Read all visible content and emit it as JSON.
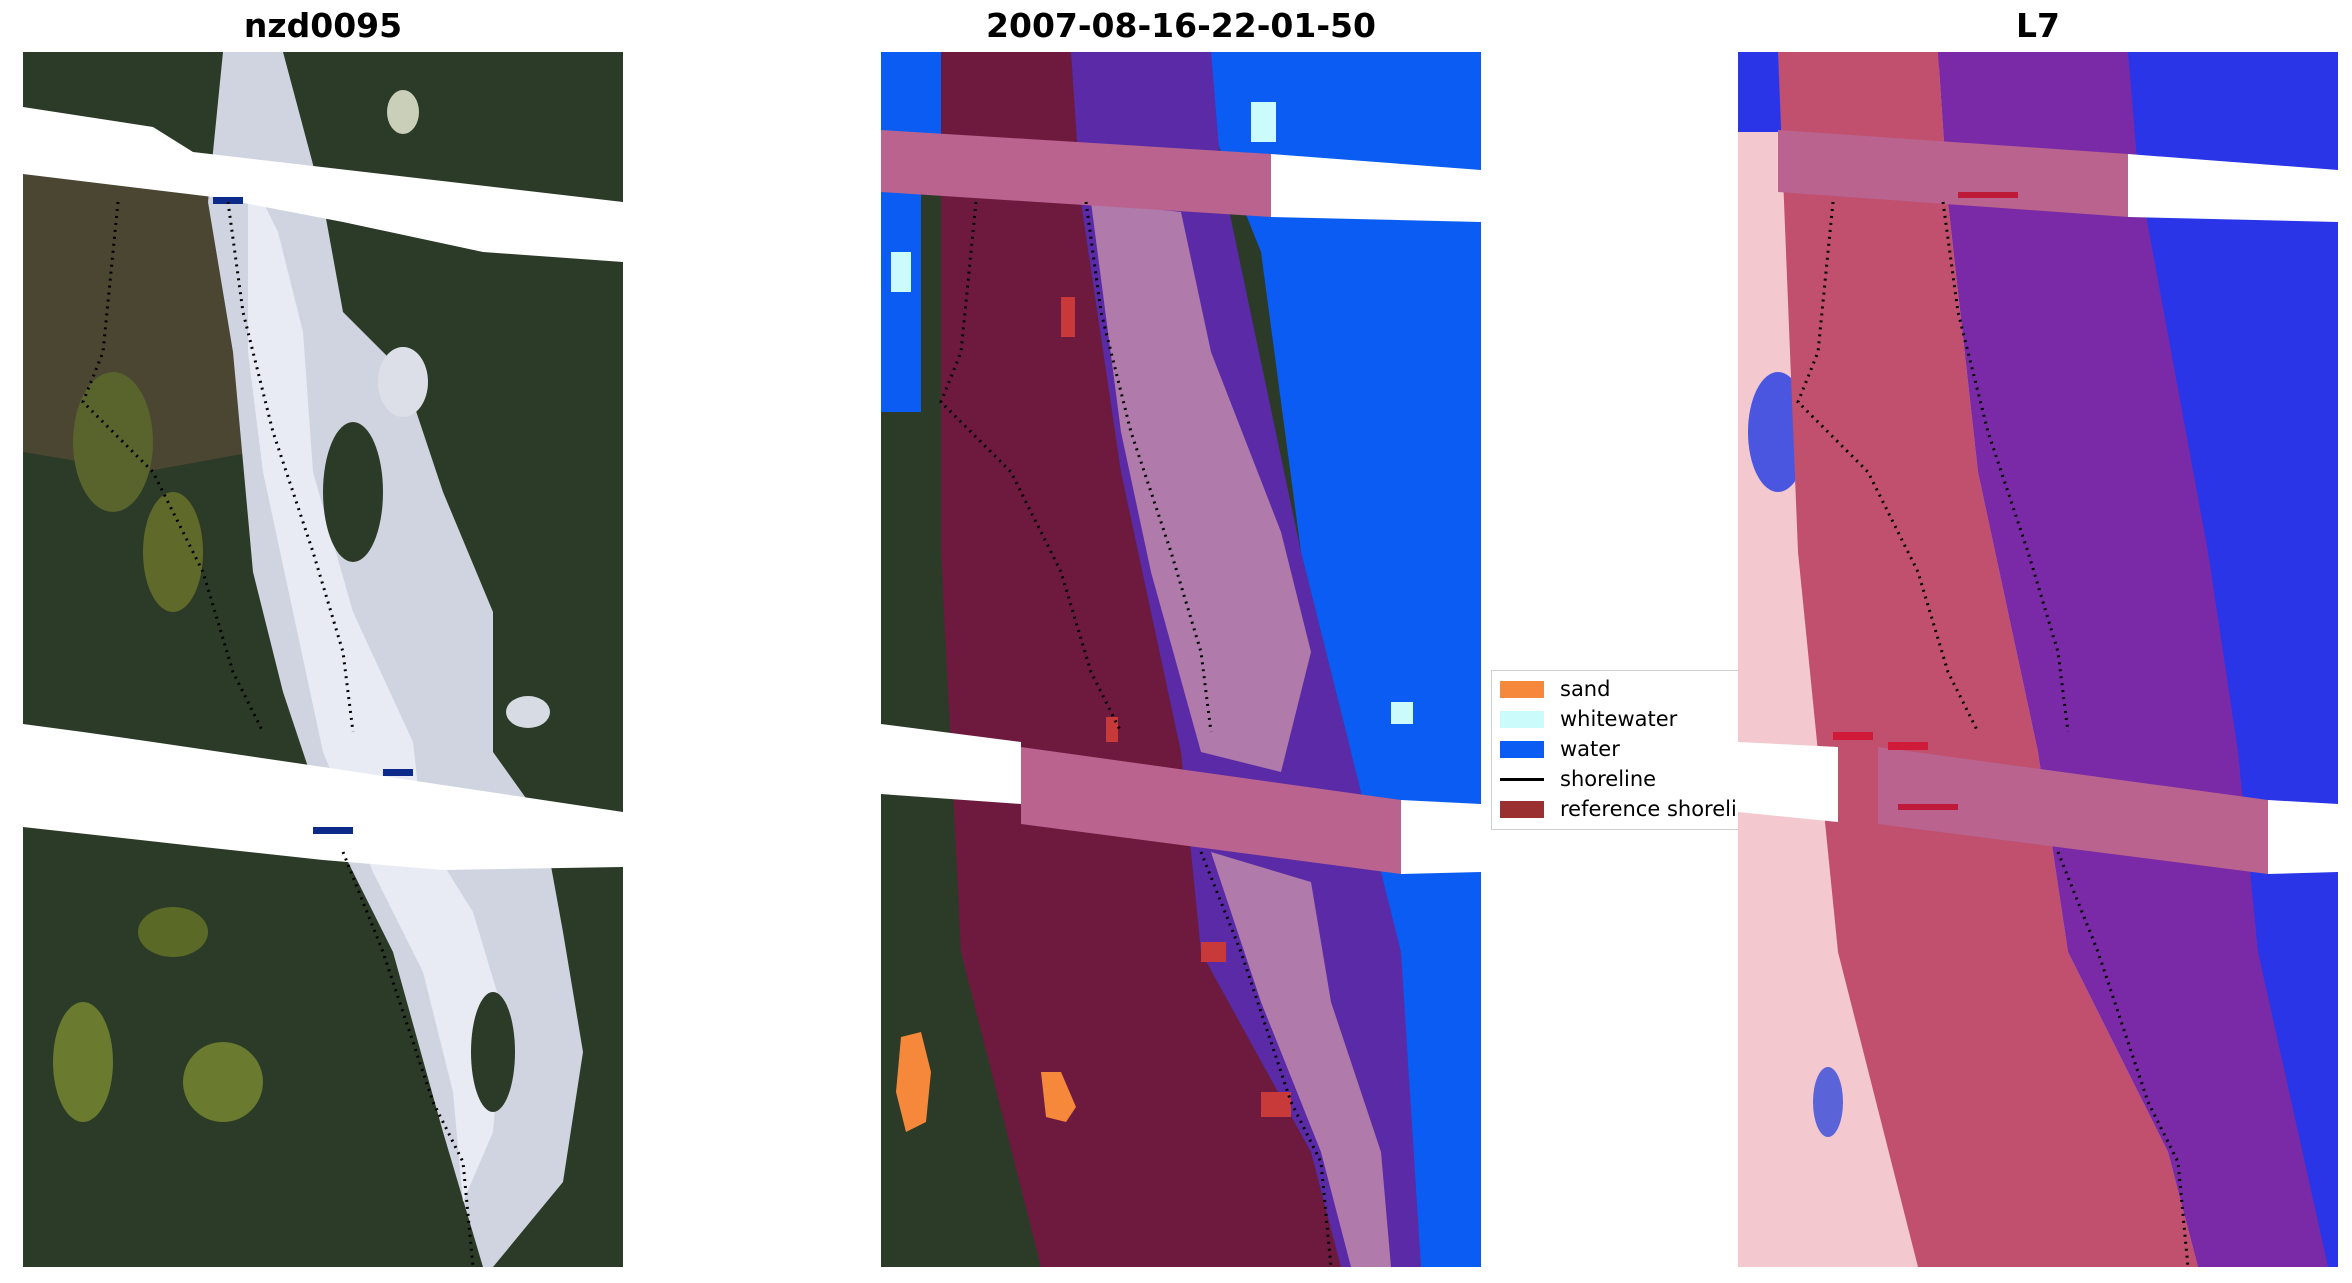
{
  "panels": [
    {
      "title": "nzd0095"
    },
    {
      "title": "2007-08-16-22-01-50"
    },
    {
      "title": "L7"
    }
  ],
  "legend": {
    "items": [
      {
        "label": "sand",
        "color": "#f5883a",
        "kind": "patch"
      },
      {
        "label": "whitewater",
        "color": "#ccfbfb",
        "kind": "patch"
      },
      {
        "label": "water",
        "color": "#0b5cf2",
        "kind": "patch"
      },
      {
        "label": "shoreline",
        "color": "#000000",
        "kind": "line"
      },
      {
        "label": "reference shoreline",
        "color": "#9b3030",
        "kind": "patch"
      }
    ]
  },
  "colors": {
    "land_dark": "#2c3a28",
    "vegetation": "#6a7a2e",
    "sand_white": "#dfe3ee",
    "overlay_band": "#b9638e",
    "overlay_maroon": "#6e1a3e",
    "overlay_purple": "#5b2aa6",
    "water_blue": "#0b5cf2",
    "index_red": "#f3c9cf",
    "index_blue": "#2a35e8"
  }
}
